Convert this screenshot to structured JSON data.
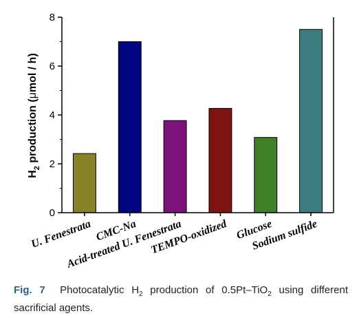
{
  "chart_data": {
    "type": "bar",
    "categories": [
      "U. Fenestrata",
      "CMC-Na",
      "Acid-treated U. Fenestrata",
      "TEMPO-oxidized",
      "Glucose",
      "Sodium sulfide"
    ],
    "values": [
      2.42,
      7.0,
      3.77,
      4.27,
      3.08,
      7.5
    ],
    "colors": [
      "#868226",
      "#030580",
      "#7b137b",
      "#7e1410",
      "#3f7f27",
      "#3b7c7e"
    ],
    "ylim": [
      0,
      8
    ],
    "yticks": [
      "0",
      "2",
      "4",
      "6",
      "8"
    ],
    "ylabel": {
      "pre": "H",
      "sub": "2",
      "mid": " production (",
      "mu": "μ",
      "post": "mol / h)"
    },
    "xlabel": "",
    "grid": false
  },
  "caption": {
    "label": "Fig. 7",
    "t1": "Photocatalytic H",
    "s1": "2",
    "t2": " production of 0.5Pt–TiO",
    "s2": "2",
    "t3": " using different sacrificial agents."
  }
}
